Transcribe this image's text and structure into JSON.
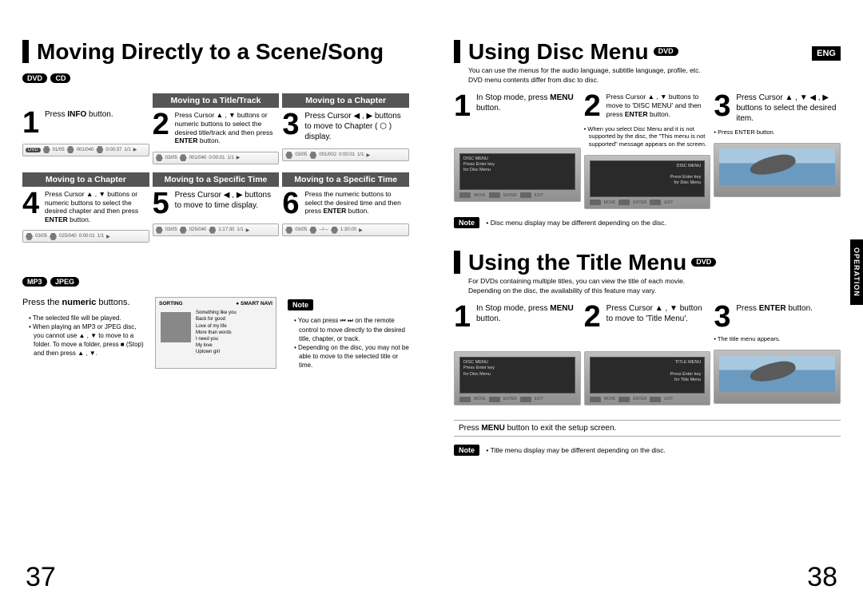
{
  "left": {
    "title": "Moving Directly to a Scene/Song",
    "formats_top": [
      "DVD",
      "CD"
    ],
    "row1": {
      "c1": {
        "num": "1",
        "body": "Press <b>INFO</b> button."
      },
      "c2": {
        "header": "Moving to a Title/Track",
        "num": "2",
        "body": "Press Cursor ▲ , ▼ buttons or numeric buttons to select the desired title/track and then press <b>ENTER</b> button."
      },
      "c3": {
        "header": "Moving to a Chapter",
        "num": "3",
        "body": "Press Cursor ◀ , ▶ buttons to move to Chapter ( ⬡ ) display."
      }
    },
    "row2": {
      "c1": {
        "header": "Moving to a Chapter",
        "num": "4",
        "body": "Press Cursor ▲ , ▼ buttons or numeric buttons to select the desired chapter and then press <b>ENTER</b> button."
      },
      "c2": {
        "header": "Moving to a Specific Time",
        "num": "5",
        "body": "Press Cursor ◀ , ▶ buttons to move to time display."
      },
      "c3": {
        "header": "Moving to a Specific Time",
        "num": "6",
        "body": "Press the numeric buttons to select the desired time and then press <b>ENTER</b> button."
      }
    },
    "formats_bottom": [
      "MP3",
      "JPEG"
    ],
    "left_press_numeric": "Press the <b>numeric</b> buttons.",
    "left_bullets": [
      "The selected file will be played.",
      "When playing an MP3 or JPEG disc, you cannot use ▲ , ▼ to move to a folder. To move a folder, press ■ (Stop) and then press ▲ , ▼."
    ],
    "notebox_title": "Note",
    "notebox_bullets": [
      "You can press ⏮ ⏭ on the remote control to move directly to the desired title, chapter, or track.",
      "Depending on the disc, you may not be able to move to the selected title or time."
    ],
    "remote_header_l": "SORTING",
    "remote_header_r": "● SMART NAVI",
    "remote_files": [
      "Something like you",
      "Back for good",
      "Love of my life",
      "More than words",
      "I need you",
      "My love",
      "Uptown girl"
    ],
    "page_num": "37"
  },
  "right": {
    "eng": "ENG",
    "operation_tab": "OPERATION",
    "disc": {
      "title": "Using Disc Menu",
      "badge": "DVD",
      "sub": "You can use the menus for the audio language, subtitle language, profile, etc.\nDVD menu contents differ from disc to disc.",
      "s1": {
        "num": "1",
        "body": "In Stop mode, press <b>MENU</b> button."
      },
      "s2": {
        "num": "2",
        "body": "Press Cursor ▲ , ▼ buttons to move to 'DISC MENU' and then press <b>ENTER</b> button."
      },
      "s3": {
        "num": "3",
        "body": "Press Cursor ▲ , ▼ ◀ , ▶ buttons to select the desired item."
      },
      "s2_small": [
        "When you select Disc Menu and it is not supported by the disc, the \"This menu is not supported\" message appears on the screen."
      ],
      "s3_small": [
        "Press ENTER button."
      ],
      "note_badge": "Note",
      "note": "Disc menu display may be different depending on the disc."
    },
    "titlemenu": {
      "title": "Using the Title Menu",
      "badge": "DVD",
      "sub": "For DVDs containing multiple titles, you can view the title of each movie.\nDepending on the disc, the availability of this feature may vary.",
      "s1": {
        "num": "1",
        "body": "In Stop mode, press <b>MENU</b> button."
      },
      "s2": {
        "num": "2",
        "body": "Press Cursor ▲ , ▼ button to move to 'Title Menu'."
      },
      "s3": {
        "num": "3",
        "body": "Press <b>ENTER</b> button."
      },
      "s3_small": [
        "The title menu appears."
      ],
      "footer": "Press <b>MENU</b> button to exit the setup screen.",
      "note_badge": "Note",
      "note": "Title menu display may be different depending on the disc."
    },
    "page_num": "38"
  }
}
